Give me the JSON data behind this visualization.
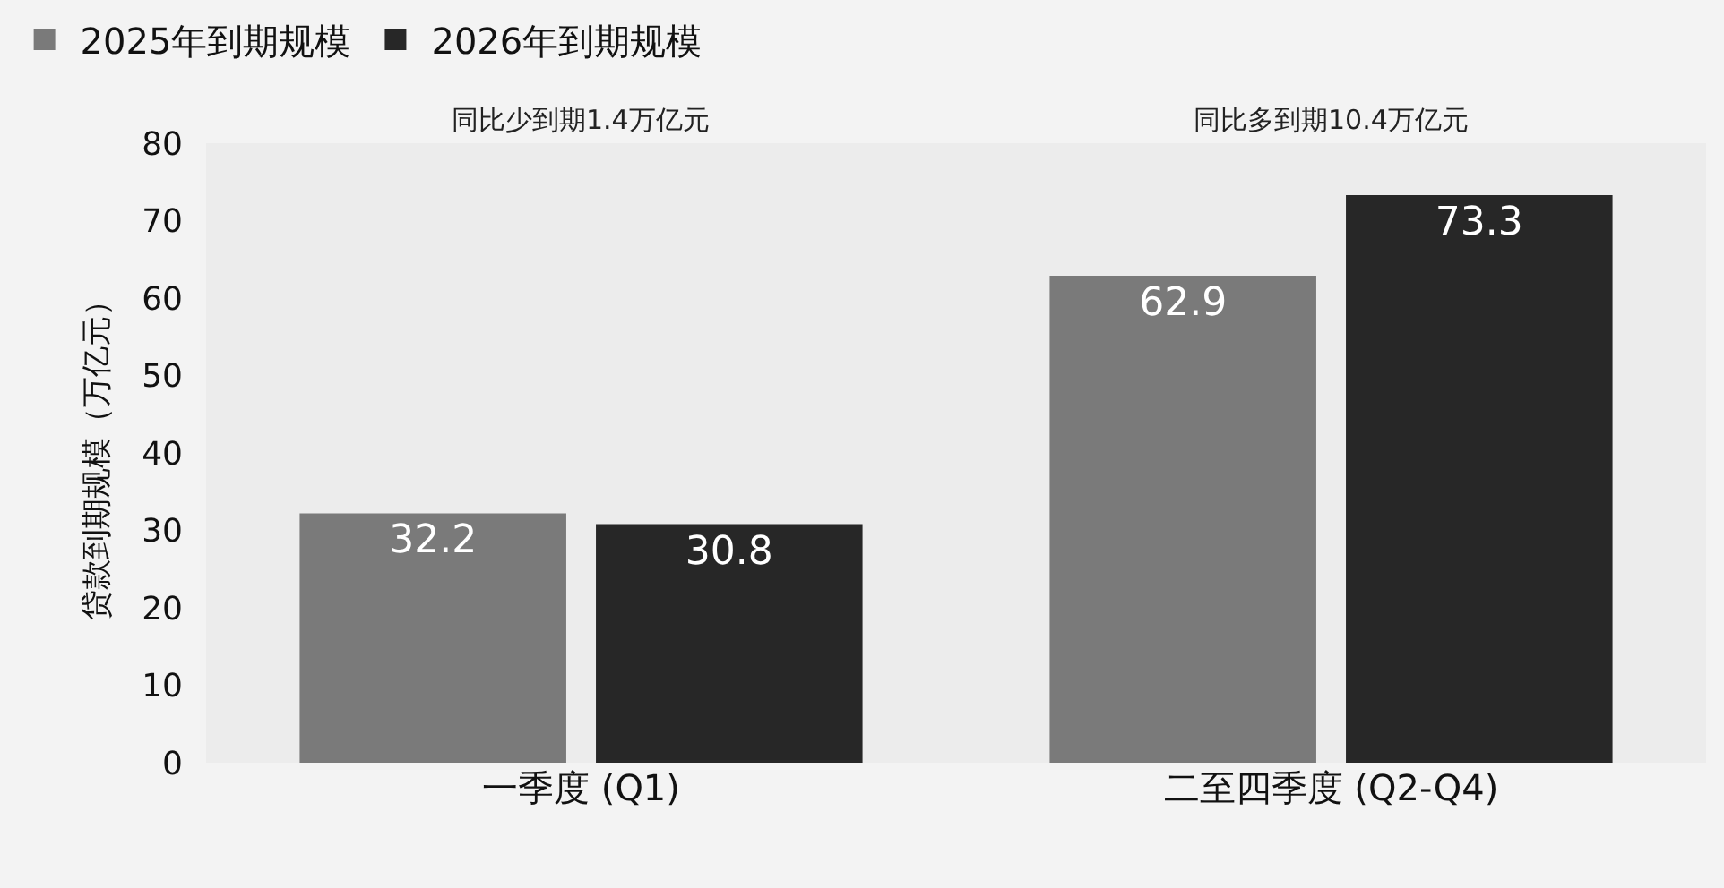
{
  "chart_data": {
    "type": "bar",
    "categories": [
      "一季度 (Q1)",
      "二至四季度 (Q2-Q4)"
    ],
    "series": [
      {
        "name": "2025年到期规模",
        "color": "#7a7a7a",
        "values": [
          32.2,
          62.9
        ]
      },
      {
        "name": "2026年到期规模",
        "color": "#272727",
        "values": [
          30.8,
          73.3
        ]
      }
    ],
    "ylabel": "贷款到期规模（万亿元）",
    "ylim": [
      0,
      80
    ],
    "yticks": [
      0,
      10,
      20,
      30,
      40,
      50,
      60,
      70,
      80
    ],
    "data_labels": true,
    "legend": "top left",
    "annotations": [
      "同比少到期1.4万亿元",
      "同比多到期10.4万亿元"
    ]
  }
}
